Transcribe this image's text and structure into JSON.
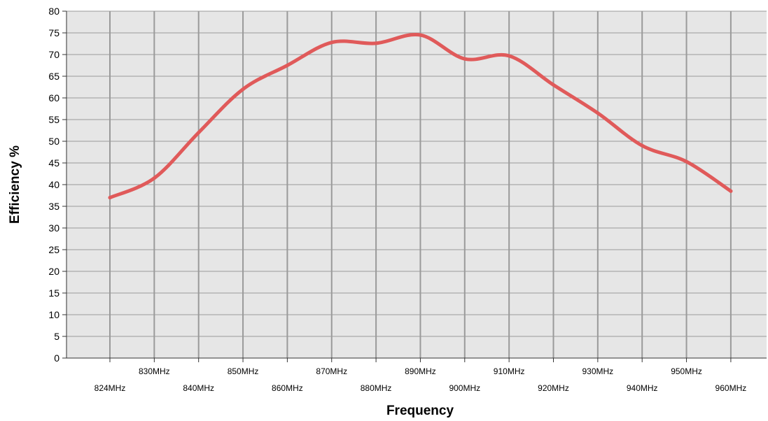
{
  "chart_data": {
    "type": "line",
    "xlabel": "Frequency",
    "ylabel": "Efficiency %",
    "ylim": [
      0,
      80
    ],
    "y_ticks": [
      0,
      5,
      10,
      15,
      20,
      25,
      30,
      35,
      40,
      45,
      50,
      55,
      60,
      65,
      70,
      75,
      80
    ],
    "x_ticks": [
      "824MHz",
      "830MHz",
      "840MHz",
      "850MHz",
      "860MHz",
      "870MHz",
      "880MHz",
      "890MHz",
      "900MHz",
      "910MHz",
      "920MHz",
      "930MHz",
      "940MHz",
      "950MHz",
      "960MHz"
    ],
    "grid": true,
    "series": [
      {
        "color": "#e05a5a",
        "values": [
          37,
          41.5,
          52,
          62,
          67.5,
          72.8,
          72.6,
          74.5,
          69,
          69.7,
          63,
          56.5,
          49,
          45.3,
          38.5
        ]
      }
    ],
    "colors": {
      "plot_background": "#e6e6e6",
      "grid": "#9a9a9a",
      "axis": "#333333"
    }
  }
}
